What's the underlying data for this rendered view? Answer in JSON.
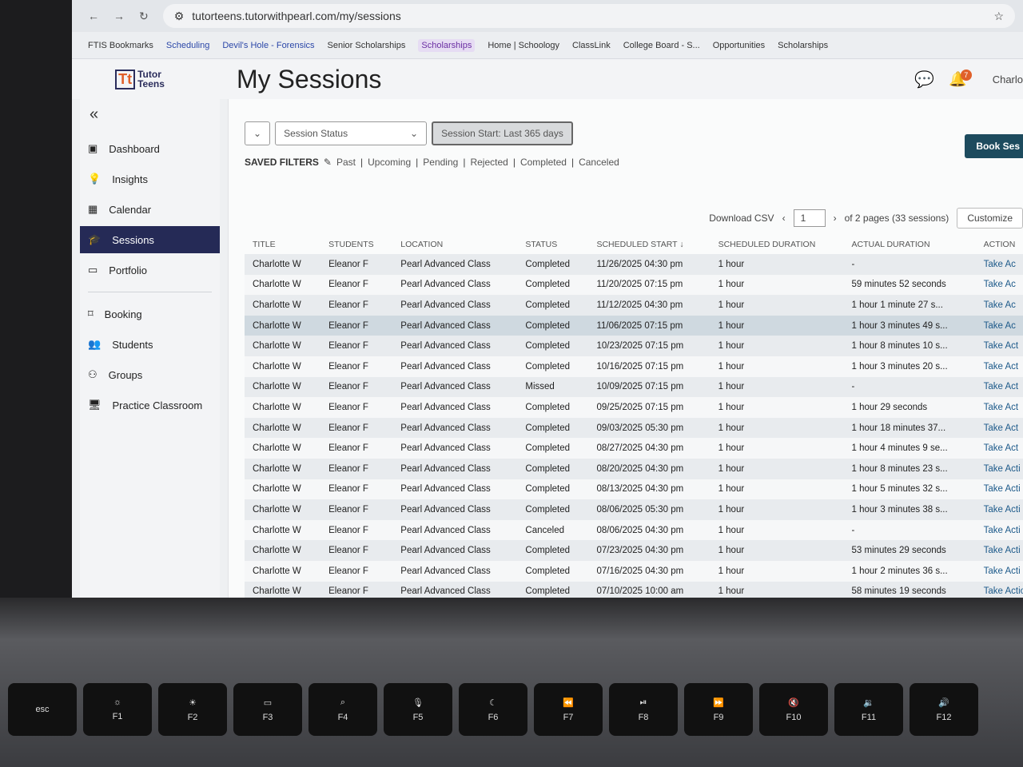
{
  "browser": {
    "url": "tutorteens.tutorwithpearl.com/my/sessions",
    "bookmarks": [
      "FTIS Bookmarks",
      "Scheduling",
      "Devil's Hole - Forensics",
      "Senior Scholarships",
      "Scholarships",
      "Home | Schoology",
      "ClassLink",
      "College Board - S...",
      "Opportunities",
      "Scholarships"
    ]
  },
  "app": {
    "logo_mark": "Tt",
    "logo_line1": "Tutor",
    "logo_line2": "Teens",
    "title": "My Sessions",
    "user": "Charlo",
    "notifications": "7"
  },
  "sidebar": {
    "items": [
      {
        "label": "Dashboard",
        "icon": "dashboard-icon"
      },
      {
        "label": "Insights",
        "icon": "lightbulb-icon"
      },
      {
        "label": "Calendar",
        "icon": "calendar-icon"
      },
      {
        "label": "Sessions",
        "icon": "graduation-cap-icon",
        "active": true
      },
      {
        "label": "Portfolio",
        "icon": "folder-icon"
      },
      {
        "label": "Booking",
        "icon": "bookmark-icon"
      },
      {
        "label": "Students",
        "icon": "users-icon"
      },
      {
        "label": "Groups",
        "icon": "groups-icon"
      },
      {
        "label": "Practice Classroom",
        "icon": "monitor-icon"
      }
    ]
  },
  "filters": {
    "session_status": "Session Status",
    "session_start": "Session Start: Last 365 days",
    "book": "Book Ses",
    "saved_label": "SAVED FILTERS",
    "saved": [
      "Past",
      "Upcoming",
      "Pending",
      "Rejected",
      "Completed",
      "Canceled"
    ]
  },
  "tools": {
    "download": "Download CSV",
    "page": "1",
    "pages": "of 2 pages (33 sessions)",
    "customize": "Customize"
  },
  "table": {
    "headers": [
      "TITLE",
      "STUDENTS",
      "LOCATION",
      "STATUS",
      "SCHEDULED START",
      "SCHEDULED DURATION",
      "ACTUAL DURATION",
      "ACTION"
    ],
    "rows": [
      [
        "Charlotte W",
        "Eleanor F",
        "Pearl Advanced Class",
        "Completed",
        "11/26/2025 04:30 pm",
        "1 hour",
        "-",
        "Take Ac"
      ],
      [
        "Charlotte W",
        "Eleanor F",
        "Pearl Advanced Class",
        "Completed",
        "11/20/2025 07:15 pm",
        "1 hour",
        "59 minutes 52 seconds",
        "Take Ac"
      ],
      [
        "Charlotte W",
        "Eleanor F",
        "Pearl Advanced Class",
        "Completed",
        "11/12/2025 04:30 pm",
        "1 hour",
        "1 hour 1 minute 27 s...",
        "Take Ac"
      ],
      [
        "Charlotte W",
        "Eleanor F",
        "Pearl Advanced Class",
        "Completed",
        "11/06/2025 07:15 pm",
        "1 hour",
        "1 hour 3 minutes 49 s...",
        "Take Ac"
      ],
      [
        "Charlotte W",
        "Eleanor F",
        "Pearl Advanced Class",
        "Completed",
        "10/23/2025 07:15 pm",
        "1 hour",
        "1 hour 8 minutes 10 s...",
        "Take Act"
      ],
      [
        "Charlotte W",
        "Eleanor F",
        "Pearl Advanced Class",
        "Completed",
        "10/16/2025 07:15 pm",
        "1 hour",
        "1 hour 3 minutes 20 s...",
        "Take Act"
      ],
      [
        "Charlotte W",
        "Eleanor F",
        "Pearl Advanced Class",
        "Missed",
        "10/09/2025 07:15 pm",
        "1 hour",
        "-",
        "Take Act"
      ],
      [
        "Charlotte W",
        "Eleanor F",
        "Pearl Advanced Class",
        "Completed",
        "09/25/2025 07:15 pm",
        "1 hour",
        "1 hour 29 seconds",
        "Take Act"
      ],
      [
        "Charlotte W",
        "Eleanor F",
        "Pearl Advanced Class",
        "Completed",
        "09/03/2025 05:30 pm",
        "1 hour",
        "1 hour 18 minutes 37...",
        "Take Act"
      ],
      [
        "Charlotte W",
        "Eleanor F",
        "Pearl Advanced Class",
        "Completed",
        "08/27/2025 04:30 pm",
        "1 hour",
        "1 hour 4 minutes 9 se...",
        "Take Act"
      ],
      [
        "Charlotte W",
        "Eleanor F",
        "Pearl Advanced Class",
        "Completed",
        "08/20/2025 04:30 pm",
        "1 hour",
        "1 hour 8 minutes 23 s...",
        "Take Acti"
      ],
      [
        "Charlotte W",
        "Eleanor F",
        "Pearl Advanced Class",
        "Completed",
        "08/13/2025 04:30 pm",
        "1 hour",
        "1 hour 5 minutes 32 s...",
        "Take Acti"
      ],
      [
        "Charlotte W",
        "Eleanor F",
        "Pearl Advanced Class",
        "Completed",
        "08/06/2025 05:30 pm",
        "1 hour",
        "1 hour 3 minutes 38 s...",
        "Take Acti"
      ],
      [
        "Charlotte W",
        "Eleanor F",
        "Pearl Advanced Class",
        "Canceled",
        "08/06/2025 04:30 pm",
        "1 hour",
        "-",
        "Take Acti"
      ],
      [
        "Charlotte W",
        "Eleanor F",
        "Pearl Advanced Class",
        "Completed",
        "07/23/2025 04:30 pm",
        "1 hour",
        "53 minutes 29 seconds",
        "Take Acti"
      ],
      [
        "Charlotte W",
        "Eleanor F",
        "Pearl Advanced Class",
        "Completed",
        "07/16/2025 04:30 pm",
        "1 hour",
        "1 hour 2 minutes 36 s...",
        "Take Acti"
      ],
      [
        "Charlotte W",
        "Eleanor F",
        "Pearl Advanced Class",
        "Completed",
        "07/10/2025 10:00 am",
        "1 hour",
        "58 minutes 19 seconds",
        "Take Actio"
      ]
    ]
  },
  "keyboard": [
    "esc",
    "F1",
    "F2",
    "F3",
    "F4",
    "F5",
    "F6",
    "F7",
    "F8",
    "F9",
    "F10",
    "F11",
    "F12"
  ],
  "icons": {
    "F1": "☼",
    "F2": "☀",
    "F3": "▭",
    "F4": "⌕",
    "F5": "🎙",
    "F6": "☾",
    "F7": "⏪",
    "F8": "⏯",
    "F9": "⏩",
    "F10": "🔇",
    "F11": "🔉",
    "F12": "🔊"
  }
}
